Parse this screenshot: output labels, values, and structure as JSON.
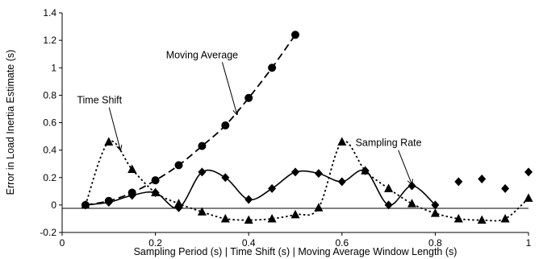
{
  "chart_data": {
    "type": "line",
    "xlabel": "Sampling Period (s) | Time Shift (s) | Moving Average Window Length (s)",
    "ylabel": "Error in Load Inertia Estimate (s)",
    "xlim": [
      0,
      1
    ],
    "ylim": [
      -0.2,
      1.4
    ],
    "xticks": [
      "0",
      "0.2",
      "0.4",
      "0.6",
      "0.8",
      "1"
    ],
    "yticks": [
      "-0.2",
      "0",
      "0.2",
      "0.4",
      "0.6",
      "0.8",
      "1",
      "1.2",
      "1.4"
    ],
    "grid": false,
    "legend": "none",
    "series": [
      {
        "name": "Moving Average",
        "marker": "circle",
        "line": "dashed",
        "color": "#000000",
        "x": [
          0.05,
          0.1,
          0.15,
          0.2,
          0.25,
          0.3,
          0.35,
          0.4,
          0.45,
          0.5
        ],
        "y": [
          0.0,
          0.03,
          0.09,
          0.18,
          0.29,
          0.43,
          0.58,
          0.78,
          1.0,
          1.24
        ]
      },
      {
        "name": "Time Shift",
        "marker": "triangle",
        "line": "dotted",
        "color": "#000000",
        "x": [
          0.05,
          0.1,
          0.15,
          0.2,
          0.25,
          0.3,
          0.35,
          0.4,
          0.45,
          0.5,
          0.55,
          0.6,
          0.65,
          0.7,
          0.75,
          0.8,
          0.85,
          0.9,
          0.95,
          1.0
        ],
        "y": [
          0.0,
          0.46,
          0.26,
          0.09,
          0.01,
          -0.05,
          -0.1,
          -0.11,
          -0.1,
          -0.07,
          -0.02,
          0.46,
          0.25,
          0.12,
          0.01,
          -0.06,
          -0.1,
          -0.11,
          -0.1,
          0.05
        ]
      },
      {
        "name": "Sampling Rate",
        "marker": "diamond",
        "line": "solid",
        "color": "#000000",
        "x": [
          0.05,
          0.1,
          0.15,
          0.2,
          0.25,
          0.3,
          0.35,
          0.4,
          0.45,
          0.5,
          0.55,
          0.6,
          0.65,
          0.7,
          0.75,
          0.8,
          0.85,
          0.9,
          0.95,
          1.0
        ],
        "y": [
          0.0,
          0.02,
          0.07,
          0.09,
          -0.02,
          0.24,
          0.2,
          0.04,
          0.12,
          0.24,
          0.23,
          0.17,
          0.25,
          0.0,
          0.14,
          0.0,
          0.17,
          0.19,
          0.12,
          0.24
        ],
        "line_until_x": 0.8
      }
    ],
    "annotations": [
      {
        "text": "Moving Average",
        "series": "Moving Average",
        "label_at": [
          0.3,
          1.07
        ],
        "arrow_to": [
          0.375,
          0.66
        ]
      },
      {
        "text": "Time Shift",
        "series": "Time Shift",
        "label_at": [
          0.08,
          0.74
        ],
        "arrow_to": [
          0.125,
          0.4
        ]
      },
      {
        "text": "Sampling Rate",
        "series": "Sampling Rate",
        "label_at": [
          0.7,
          0.43
        ],
        "arrow_to": [
          0.75,
          0.15
        ]
      }
    ]
  }
}
